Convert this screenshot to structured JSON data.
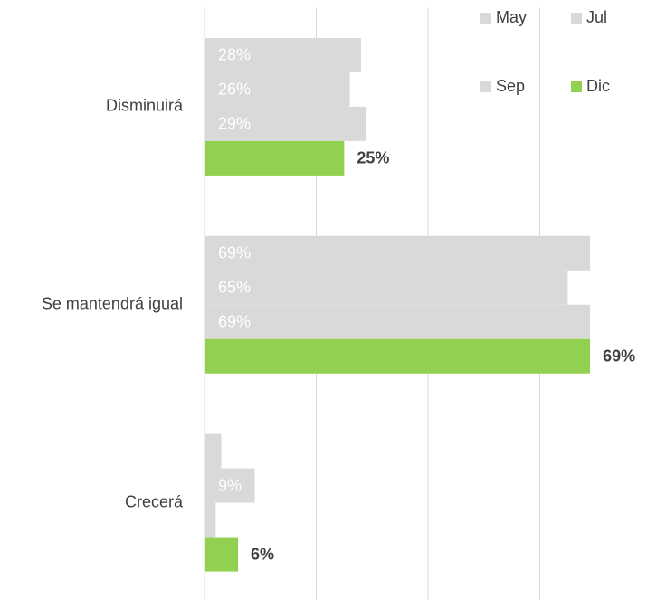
{
  "chart_data": {
    "type": "bar",
    "orientation": "horizontal",
    "categories": [
      "Disminuirá",
      "Se mantendrá igual",
      "Crecerá"
    ],
    "series": [
      {
        "name": "May",
        "color": "#d9d9d9",
        "values": [
          28,
          69,
          3
        ],
        "value_labels": [
          "28%",
          "69%",
          null
        ]
      },
      {
        "name": "Jul",
        "color": "#d9d9d9",
        "values": [
          26,
          65,
          9
        ],
        "value_labels": [
          "26%",
          "65%",
          "9%"
        ]
      },
      {
        "name": "Sep",
        "color": "#d9d9d9",
        "values": [
          29,
          69,
          2
        ],
        "value_labels": [
          "29%",
          "69%",
          null
        ]
      },
      {
        "name": "Dic",
        "color": "#92d050",
        "values": [
          25,
          69,
          6
        ],
        "value_labels": [
          "25%",
          "69%",
          "6%"
        ]
      }
    ],
    "xlim": [
      0,
      80
    ],
    "xticks": [
      0,
      20,
      40,
      60
    ],
    "grid": true,
    "legend": "top-right"
  }
}
